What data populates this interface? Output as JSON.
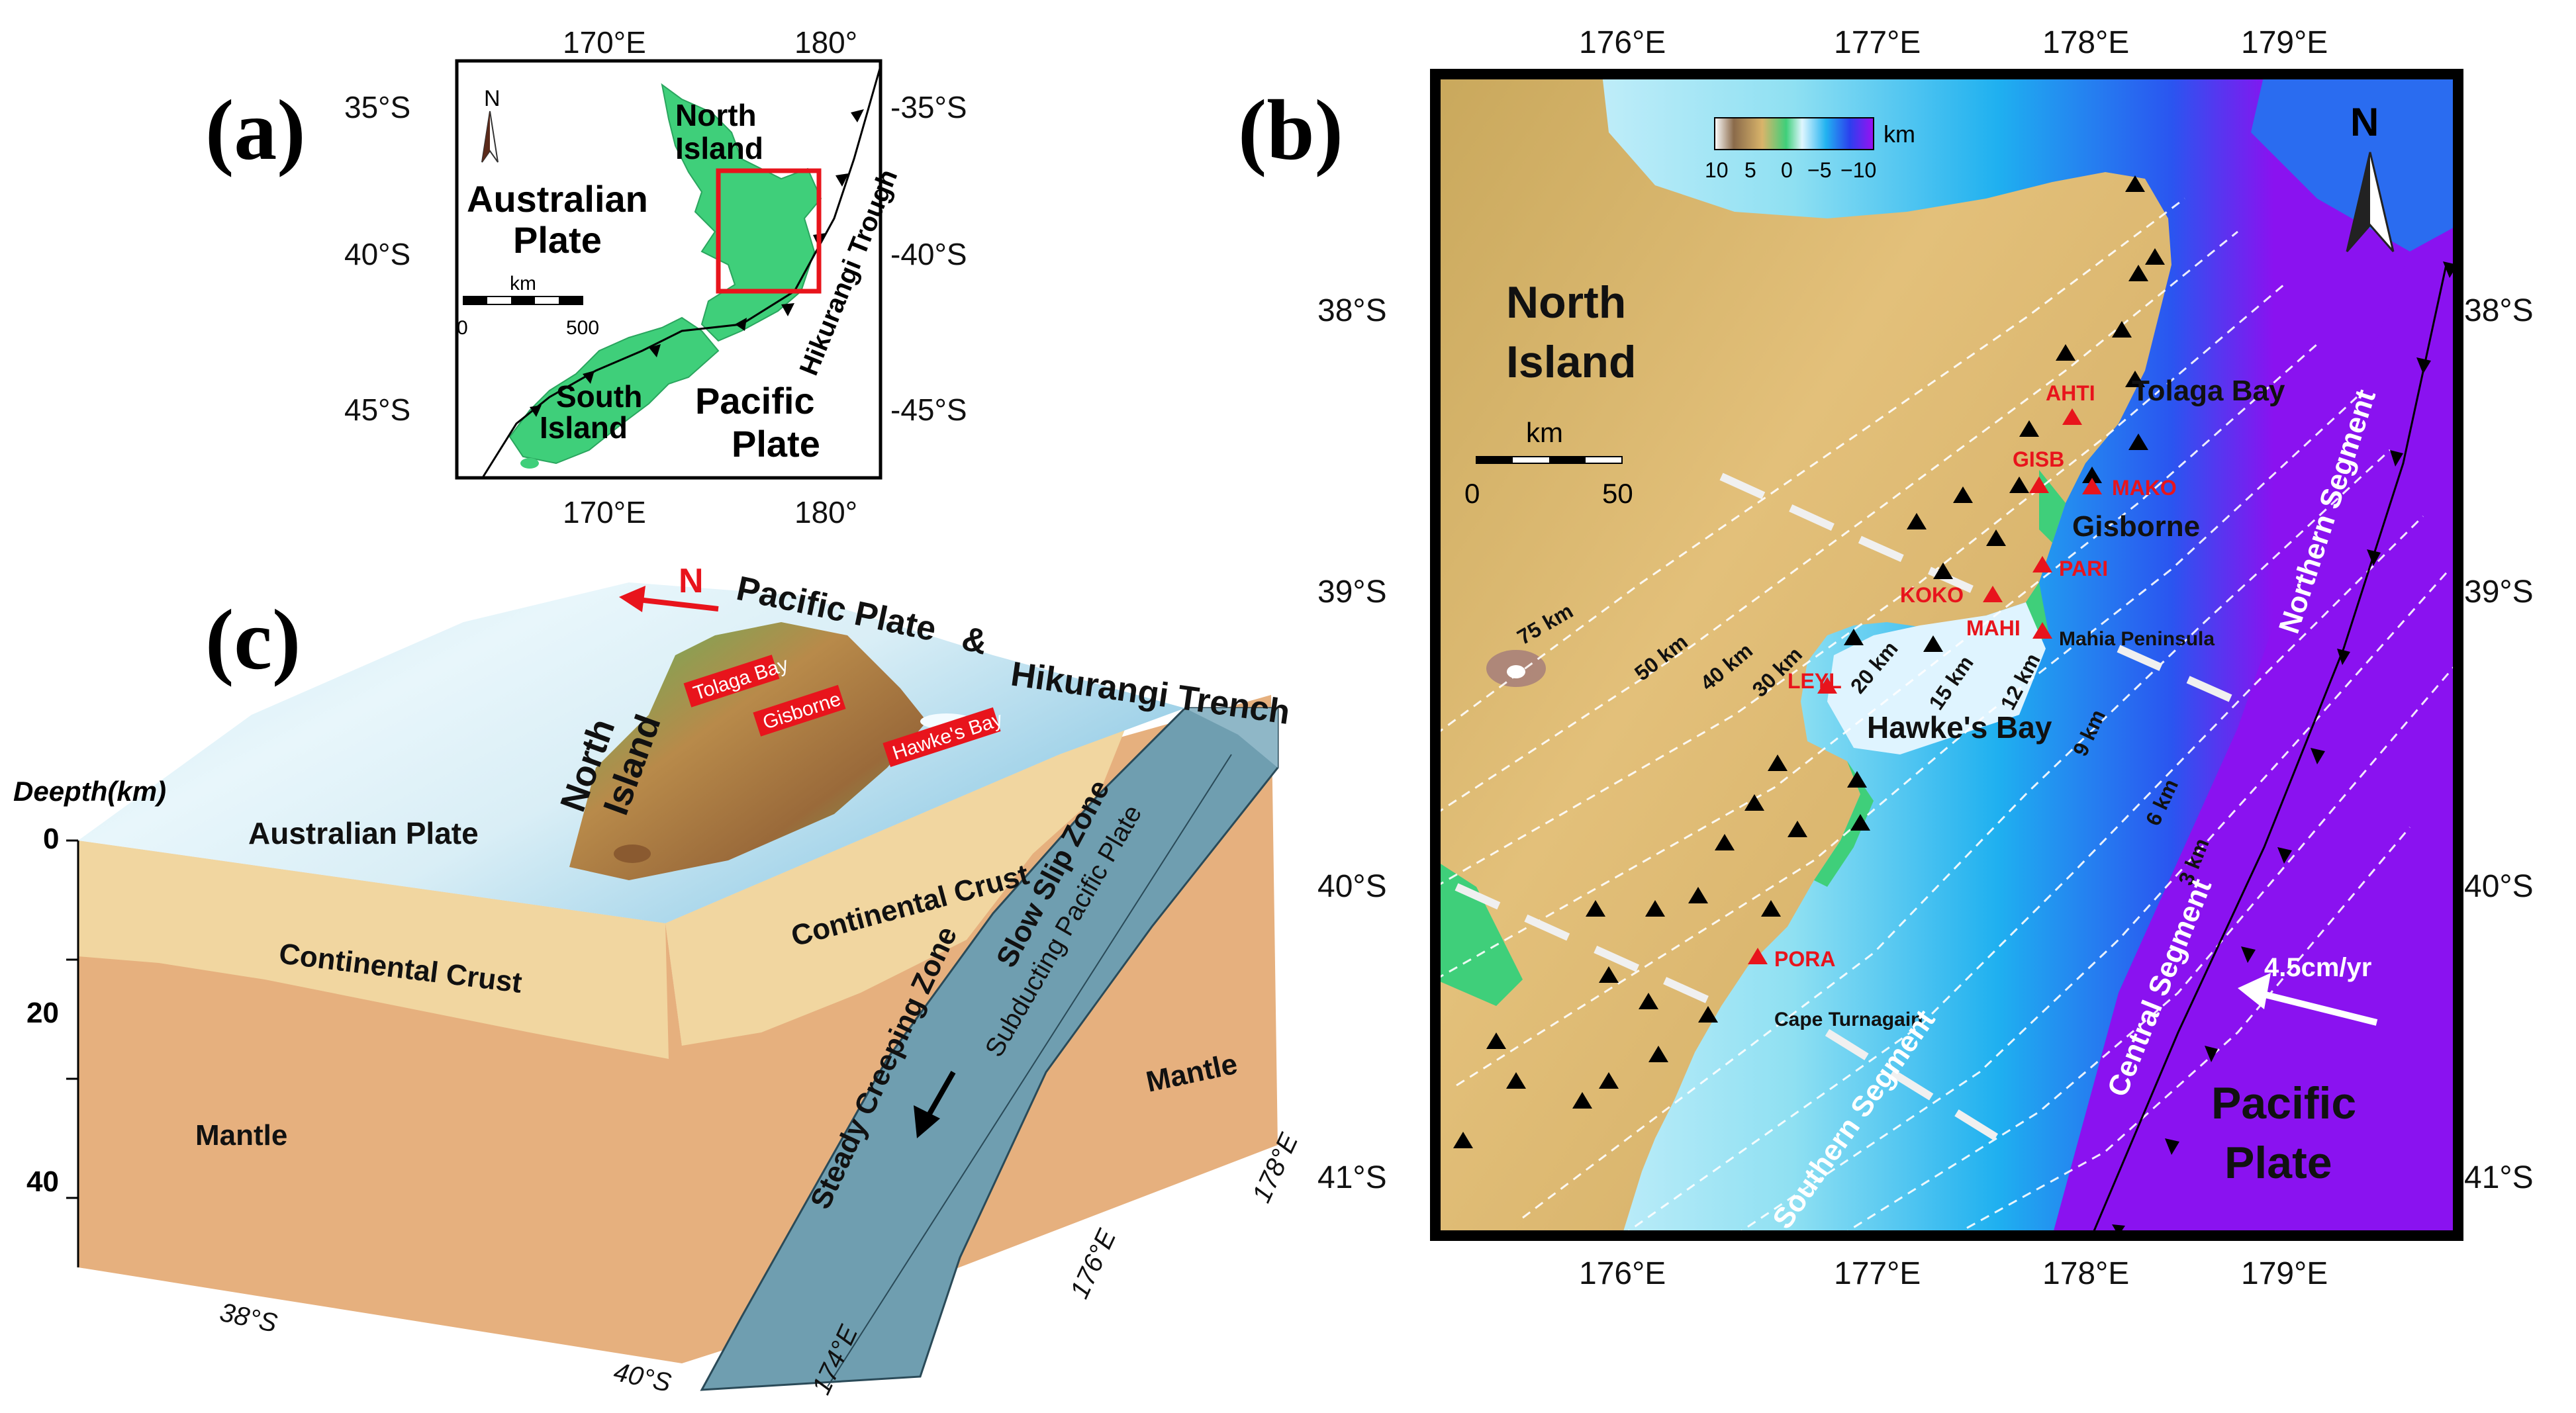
{
  "panel_a": {
    "letter": "(a)",
    "top_ticks": [
      "170°E",
      "180°"
    ],
    "bottom_ticks": [
      "170°E",
      "180°"
    ],
    "left_ticks": [
      "35°S",
      "40°S",
      "45°S"
    ],
    "right_ticks": [
      "-35°S",
      "-40°S",
      "-45°S"
    ],
    "north": "N",
    "north_island": [
      "North",
      "Island"
    ],
    "south_island": [
      "South",
      "Island"
    ],
    "australian_plate": [
      "Australian",
      "Plate"
    ],
    "pacific_plate": [
      "Pacific",
      "Plate"
    ],
    "trough": "Hikurangi Trough",
    "scale_unit": "km",
    "scale_min": "0",
    "scale_max": "500"
  },
  "panel_b": {
    "letter": "(b)",
    "top_ticks": [
      "176°E",
      "177°E",
      "178°E",
      "179°E"
    ],
    "bottom_ticks": [
      "176°E",
      "177°E",
      "178°E",
      "179°E"
    ],
    "left_ticks": [
      "38°S",
      "39°S",
      "40°S",
      "41°S"
    ],
    "right_ticks": [
      "38°S",
      "39°S",
      "40°S",
      "41°S"
    ],
    "colorbar_unit": "km",
    "colorbar_ticks": [
      "10",
      "5",
      "0",
      "−5",
      "−10"
    ],
    "north": "N",
    "north_island": [
      "North",
      "Island"
    ],
    "scale_unit": "km",
    "scale_min": "0",
    "scale_max": "50",
    "places": {
      "tolaga_bay": "Tolaga Bay",
      "gisborne": "Gisborne",
      "mahia": "Mahia Peninsula",
      "hawkes_bay": "Hawke's Bay",
      "cape_turnagain": "Cape Turnagain"
    },
    "stations": [
      "AHTI",
      "GISB",
      "MAKO",
      "PARI",
      "KOKO",
      "MAHI",
      "LEYL",
      "PORA"
    ],
    "contours": [
      "75 km",
      "50 km",
      "40 km",
      "30 km",
      "20 km",
      "15 km",
      "12 km",
      "9 km",
      "6 km",
      "3 km"
    ],
    "segments": [
      "Northern Segment",
      "Central Segment",
      "Southern Segment"
    ],
    "velocity": "4.5cm/yr",
    "pacific_plate": [
      "Pacific",
      "Plate"
    ]
  },
  "panel_c": {
    "letter": "(c)",
    "north": "N",
    "pacific_plate": "Pacific Plate",
    "amp": "&",
    "trench": "Hikurangi Trench",
    "tolaga_bay": "Tolaga Bay",
    "gisborne": "Gisborne",
    "hawkes_bay": "Hawke's Bay",
    "north_island": [
      "North",
      "Island"
    ],
    "australian_plate": "Australian Plate",
    "depth_title": "Deepth(km)",
    "depth_ticks": [
      "0",
      "20",
      "40"
    ],
    "continental_crust_front": "Continental Crust",
    "continental_crust_side": "Continental Crust",
    "mantle_front": "Mantle",
    "mantle_side": "Mantle",
    "slow_slip": "Slow Slip Zone",
    "subducting": "Subducting Pacific Plate",
    "steady_creeping": "Steady Creeping Zone",
    "lat_ticks": [
      "38°S",
      "40°S"
    ],
    "lon_ticks": [
      "174°E",
      "176°E",
      "178°E"
    ]
  },
  "colors": {
    "land_green": "#3fcf7a",
    "ocean_purple": "#8a12f0",
    "station_red": "#e8141c",
    "crust": "#f1d6a0",
    "mantle": "#e6b07e",
    "slab": "#6f9eb0"
  }
}
